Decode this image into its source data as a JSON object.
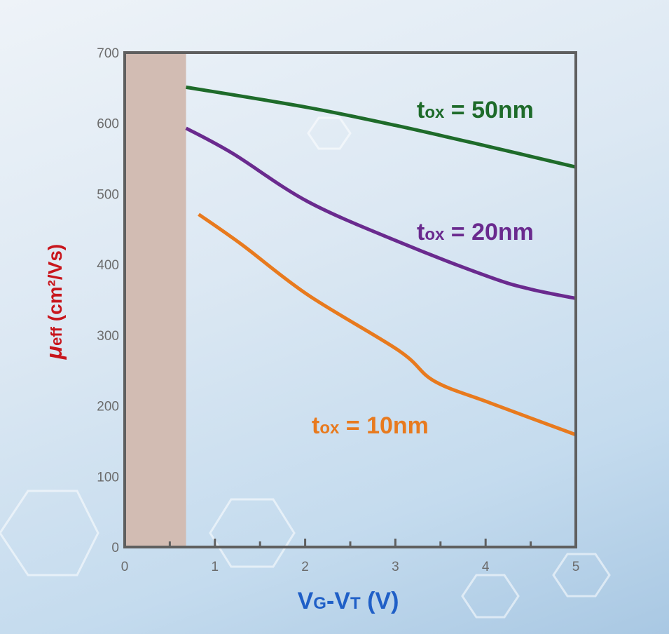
{
  "chart_data": {
    "type": "line",
    "xlabel": {
      "main": "V",
      "sub1": "G",
      "mid": "-V",
      "sub2": "T",
      "tail": " (V)"
    },
    "ylabel": {
      "main": "μ",
      "sub": "eff",
      "tail": " (cm²/Vs)"
    },
    "xlim": [
      0,
      5
    ],
    "ylim": [
      0,
      700
    ],
    "xticks": [
      "0",
      "1",
      "2",
      "3",
      "4",
      "5"
    ],
    "yticks": [
      "0",
      "100",
      "200",
      "300",
      "400",
      "500",
      "600",
      "700"
    ],
    "grid": false,
    "shaded_region": {
      "x": [
        0,
        0.68
      ],
      "color": "#d2bcb3"
    },
    "series": [
      {
        "name": "tox = 50nm",
        "label": {
          "t": "t",
          "sub": "ox",
          "rest": " = 50nm"
        },
        "color": "#1e6b2a",
        "x": [
          0.68,
          2,
          3,
          4,
          5
        ],
        "y": [
          651,
          623,
          597,
          568,
          538
        ]
      },
      {
        "name": "tox = 20nm",
        "label": {
          "t": "t",
          "sub": "ox",
          "rest": " = 20nm"
        },
        "color": "#6a2a8e",
        "x": [
          0.68,
          1.2,
          2.03,
          3.04,
          4.05,
          4.5,
          5
        ],
        "y": [
          593,
          557,
          489,
          432,
          382,
          365,
          352
        ]
      },
      {
        "name": "tox = 10nm",
        "label": {
          "t": "t",
          "sub": "ox",
          "rest": " = 10nm"
        },
        "color": "#e87a1e",
        "x": [
          0.82,
          1.3,
          2.03,
          3.04,
          3.43,
          4.05,
          5
        ],
        "y": [
          471,
          428,
          357,
          278,
          235,
          204,
          159
        ]
      }
    ]
  }
}
